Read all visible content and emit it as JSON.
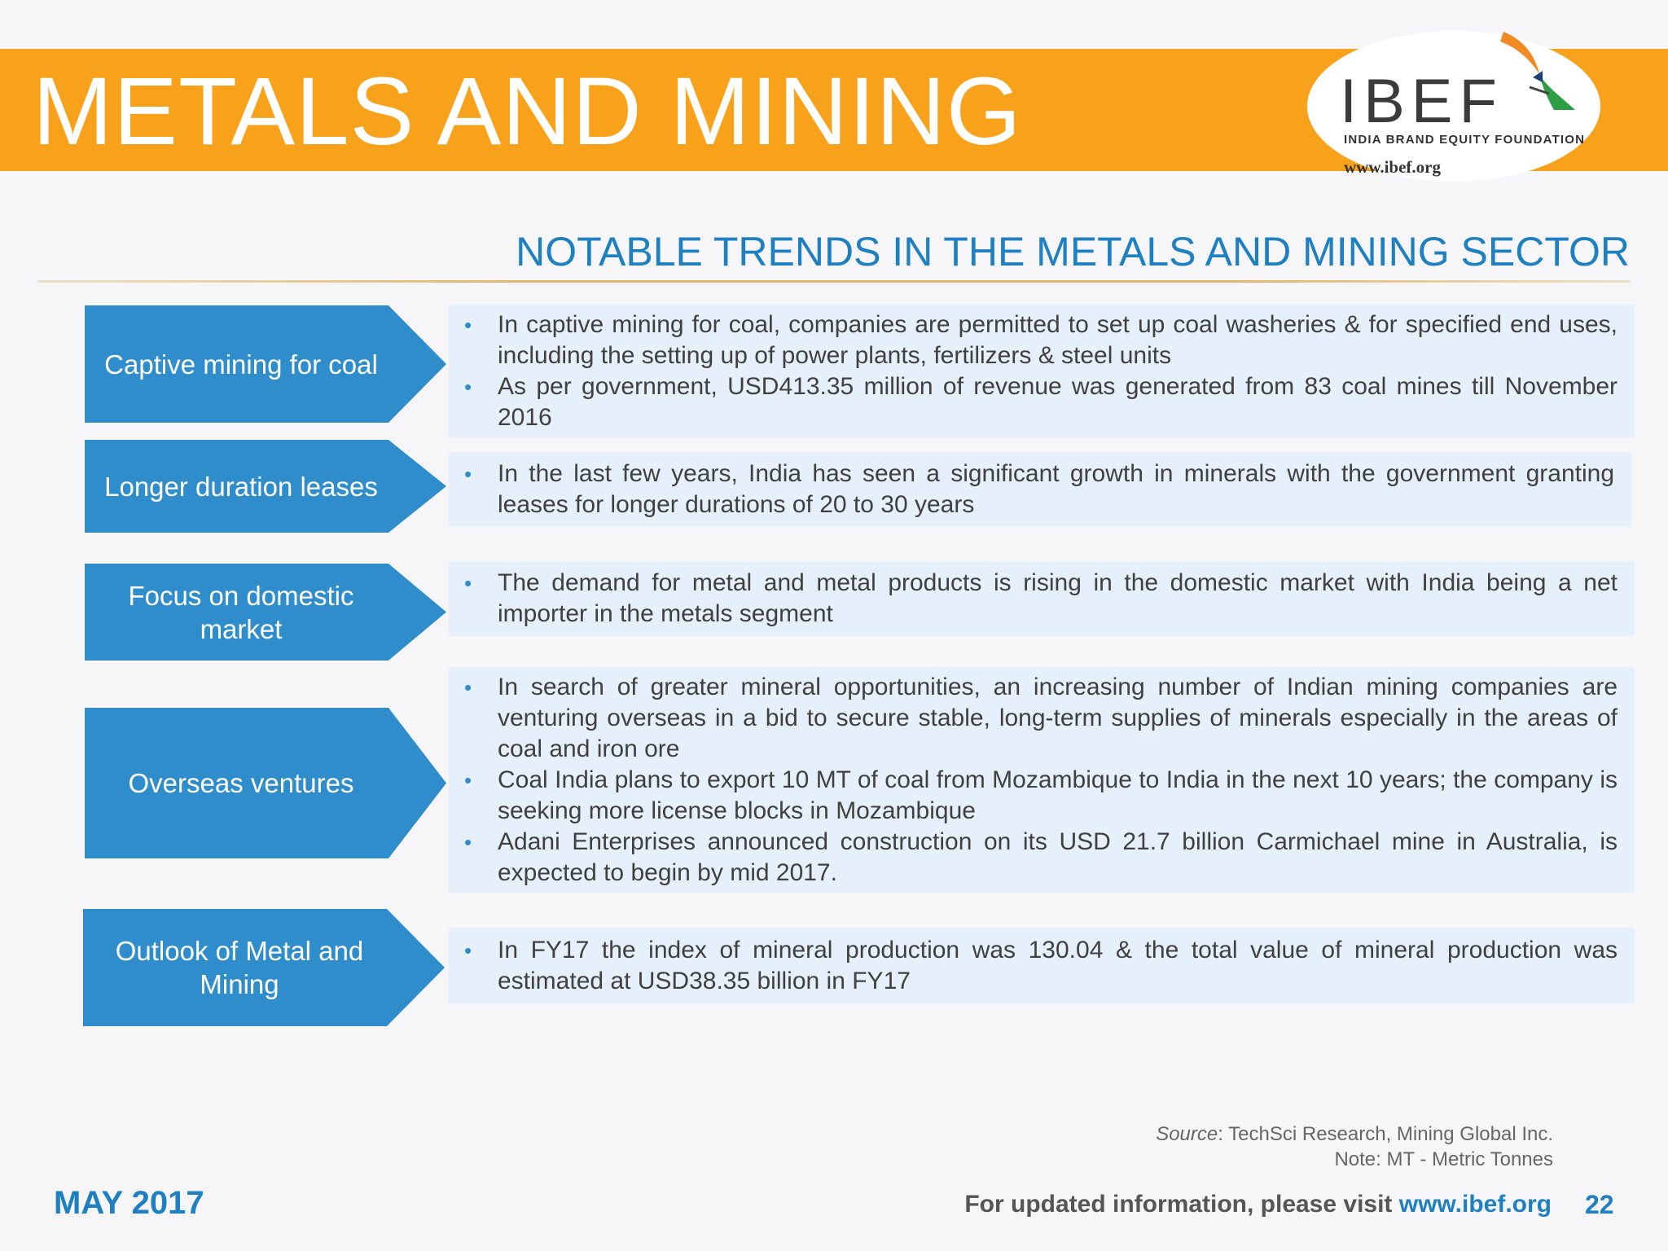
{
  "header": {
    "title": "METALS AND MINING",
    "logo": {
      "text": "IBEF",
      "subtitle": "INDIA BRAND EQUITY FOUNDATION",
      "url": "www.ibef.org"
    },
    "colors": {
      "banner": "#f7a21a",
      "accent": "#1e7fc1",
      "label": "#2f8dcb",
      "box": "#e5f0fa"
    }
  },
  "section_heading": "NOTABLE TRENDS IN THE METALS AND MINING SECTOR",
  "trends": [
    {
      "label": "Captive mining for coal",
      "bullets": [
        "In captive mining for coal, companies are permitted to set up coal washeries & for specified end uses, including the setting up of power plants, fertilizers & steel units",
        "As per government, USD413.35 million of revenue was generated from 83 coal mines till November 2016"
      ]
    },
    {
      "label": "Longer duration leases",
      "bullets": [
        "In the last few years, India has seen a significant growth in minerals with the government granting leases for longer durations of 20 to 30 years"
      ]
    },
    {
      "label": "Focus on domestic market",
      "bullets": [
        "The demand for metal and metal products is rising in the domestic market with India being a net importer in the metals segment"
      ]
    },
    {
      "label": "Overseas ventures",
      "bullets": [
        "In search of greater mineral opportunities, an increasing number of Indian mining companies are venturing overseas in a bid to secure stable, long-term supplies of minerals especially in the areas of coal and iron ore",
        "Coal India plans to export 10 MT of coal from Mozambique to India in the next 10 years; the company is seeking more license blocks in Mozambique",
        "Adani Enterprises announced construction on its USD 21.7 billion Carmichael mine in Australia, is expected to begin by mid 2017."
      ]
    },
    {
      "label": "Outlook of Metal and Mining",
      "bullets": [
        "In FY17 the index of mineral production was 130.04 & the total value of mineral production was estimated at USD38.35 billion in FY17"
      ]
    }
  ],
  "source": {
    "label": "Source",
    "text": ": TechSci Research, Mining Global Inc.",
    "note": "Note: MT - Metric Tonnes"
  },
  "footer": {
    "date": "MAY 2017",
    "visit_text": "For updated information, please visit ",
    "link": "www.ibef.org",
    "page": "22"
  }
}
